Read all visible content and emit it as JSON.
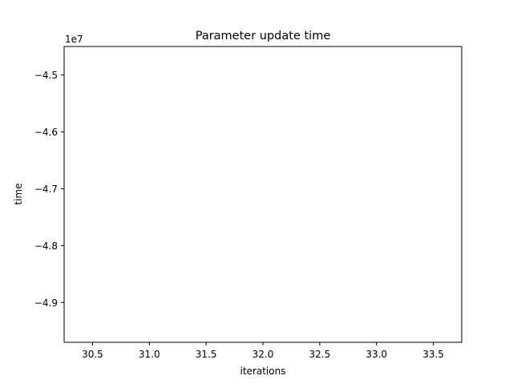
{
  "chart_data": {
    "type": "line",
    "title": "Parameter update time",
    "xlabel": "iterations",
    "ylabel": "time",
    "xlim": [
      30.25,
      33.75
    ],
    "ylim": [
      -49.7,
      -44.5
    ],
    "x_ticks": [
      30.5,
      31.0,
      31.5,
      32.0,
      32.5,
      33.0,
      33.5
    ],
    "x_tick_labels": [
      "30.5",
      "31.0",
      "31.5",
      "32.0",
      "32.5",
      "33.0",
      "33.5"
    ],
    "y_ticks": [
      -45.0,
      -46.0,
      -47.0,
      -48.0,
      -49.0
    ],
    "y_tick_labels": [
      "−4.5",
      "−4.6",
      "−4.7",
      "−4.8",
      "−4.9"
    ],
    "y_scale_label": "1e7",
    "grid": false,
    "series": []
  }
}
